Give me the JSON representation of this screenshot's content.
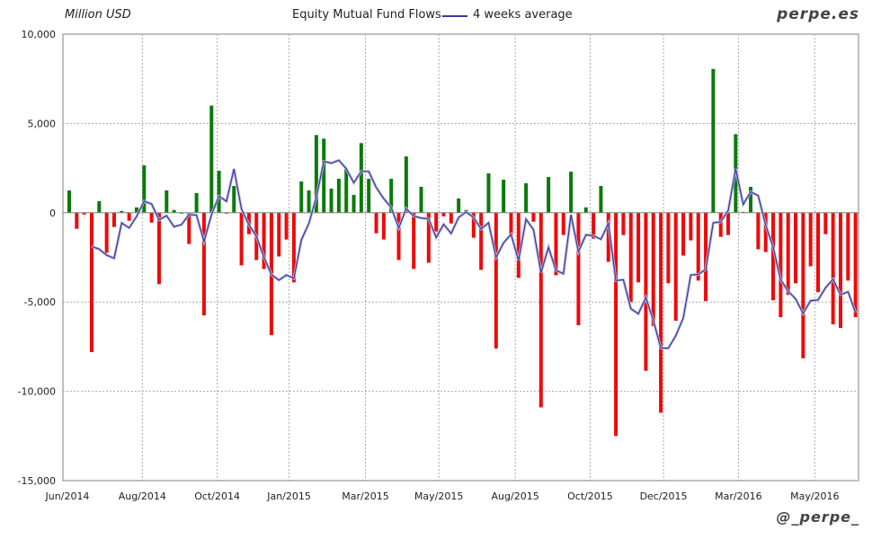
{
  "header": {
    "unit_label": "Million USD",
    "brand": "perpe.es",
    "handle": "@_perpe_"
  },
  "chart_data": {
    "type": "bar",
    "title": "Equity Mutual Fund Flows",
    "ylabel": "Million USD",
    "xlabel": "",
    "ylim": [
      -15000,
      10000
    ],
    "yticks": [
      10000,
      5000,
      0,
      -5000,
      -10000,
      -15000
    ],
    "ytick_labels": [
      "10,000",
      "5,000",
      "0",
      "-5,000",
      "-10,000",
      "-15,000"
    ],
    "grid": true,
    "legend": "top-center",
    "colors": {
      "positive": "#0a7a0a",
      "negative": "#ee0a0a",
      "average": "#3a3a9a"
    },
    "xticks": [
      {
        "label": "Jun/2014",
        "week": 0
      },
      {
        "label": "Aug/2014",
        "week": 10
      },
      {
        "label": "Oct/2014",
        "week": 20
      },
      {
        "label": "Jan/2015",
        "week": 29.6
      },
      {
        "label": "Mar/2015",
        "week": 39.8
      },
      {
        "label": "May/2015",
        "week": 49.6
      },
      {
        "label": "Aug/2015",
        "week": 59.8
      },
      {
        "label": "Oct/2015",
        "week": 69.8
      },
      {
        "label": "Dec/2015",
        "week": 79.6
      },
      {
        "label": "Mar/2016",
        "week": 89.6
      },
      {
        "label": "May/2016",
        "week": 99.8
      }
    ],
    "series": [
      {
        "type": "bar",
        "values": [
          1250,
          -900,
          -100,
          -7800,
          650,
          -2250,
          -800,
          100,
          -450,
          300,
          2650,
          -550,
          -4000,
          1250,
          150,
          -50,
          -1750,
          1100,
          -5750,
          6000,
          2350,
          -50,
          1500,
          -2950,
          -1200,
          -2650,
          -3150,
          -6850,
          -2450,
          -1500,
          -3900,
          1750,
          1250,
          4350,
          4150,
          1350,
          1900,
          2450,
          1000,
          3900,
          1900,
          -1150,
          -1500,
          1900,
          -2650,
          3150,
          -3150,
          1450,
          -2800,
          -1050,
          -200,
          -600,
          800,
          150,
          -1400,
          -3200,
          2200,
          -7600,
          1850,
          -1300,
          -3650,
          1650,
          -500,
          -10900,
          2000,
          -3500,
          -1250,
          2300,
          -6300,
          300,
          -1450,
          1500,
          -2750,
          -12500,
          -1250,
          -5000,
          -3900,
          -8850,
          -6350,
          -11200,
          -3950,
          -6050,
          -2400,
          -1550,
          -3800,
          -4950,
          8050,
          -1350,
          -1250,
          4400,
          50,
          1450,
          -2050,
          -2200,
          -4900,
          -5850,
          -4600,
          -3950,
          -8150,
          -3000,
          -4450,
          -1200,
          -6250,
          -6450,
          -3800,
          -5850
        ]
      },
      {
        "type": "line",
        "name": "4 weeks average",
        "window": 4
      }
    ]
  }
}
